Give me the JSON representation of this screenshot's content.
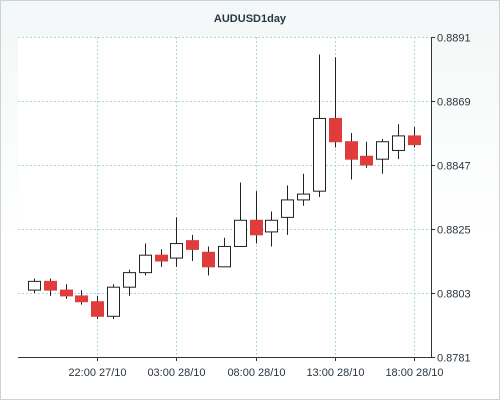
{
  "chart_data": {
    "type": "candlestick",
    "title": "AUDUSD1day",
    "xlabel": "",
    "ylabel": "",
    "ylim": [
      0.8781,
      0.8891
    ],
    "y_ticks": [
      "0.8891",
      "0.8869",
      "0.8847",
      "0.8825",
      "0.8803",
      "0.8781"
    ],
    "x_ticks": [
      {
        "label": "22:00 27/10",
        "index": 4
      },
      {
        "label": "03:00 28/10",
        "index": 9
      },
      {
        "label": "08:00 28/10",
        "index": 14
      },
      {
        "label": "13:00 28/10",
        "index": 19
      },
      {
        "label": "18:00 28/10",
        "index": 24
      }
    ],
    "grid": true,
    "colors": {
      "bull": "#ffffff",
      "bear": "#e03c3c",
      "wick": "#222222",
      "grid": "#a8d8dc",
      "axis": "#2a3640"
    },
    "candles": [
      {
        "open": 0.8804,
        "high": 0.8808,
        "low": 0.8803,
        "close": 0.8807
      },
      {
        "open": 0.8807,
        "high": 0.8808,
        "low": 0.8802,
        "close": 0.8804
      },
      {
        "open": 0.8804,
        "high": 0.8806,
        "low": 0.8801,
        "close": 0.8802
      },
      {
        "open": 0.8802,
        "high": 0.8804,
        "low": 0.8799,
        "close": 0.88
      },
      {
        "open": 0.88,
        "high": 0.8802,
        "low": 0.8794,
        "close": 0.8795
      },
      {
        "open": 0.8795,
        "high": 0.8806,
        "low": 0.8794,
        "close": 0.8805
      },
      {
        "open": 0.8805,
        "high": 0.8811,
        "low": 0.8802,
        "close": 0.881
      },
      {
        "open": 0.881,
        "high": 0.882,
        "low": 0.8809,
        "close": 0.8816
      },
      {
        "open": 0.8816,
        "high": 0.8818,
        "low": 0.8812,
        "close": 0.8814
      },
      {
        "open": 0.8815,
        "high": 0.8829,
        "low": 0.8812,
        "close": 0.882
      },
      {
        "open": 0.8821,
        "high": 0.8823,
        "low": 0.8814,
        "close": 0.8818
      },
      {
        "open": 0.8817,
        "high": 0.8819,
        "low": 0.8809,
        "close": 0.8812
      },
      {
        "open": 0.8812,
        "high": 0.8822,
        "low": 0.8812,
        "close": 0.8819
      },
      {
        "open": 0.8819,
        "high": 0.8841,
        "low": 0.8819,
        "close": 0.8828
      },
      {
        "open": 0.8828,
        "high": 0.8838,
        "low": 0.882,
        "close": 0.8823
      },
      {
        "open": 0.8824,
        "high": 0.8831,
        "low": 0.8819,
        "close": 0.8828
      },
      {
        "open": 0.8829,
        "high": 0.884,
        "low": 0.8823,
        "close": 0.8835
      },
      {
        "open": 0.8835,
        "high": 0.8844,
        "low": 0.8833,
        "close": 0.8837
      },
      {
        "open": 0.8838,
        "high": 0.8885,
        "low": 0.8836,
        "close": 0.8863
      },
      {
        "open": 0.8863,
        "high": 0.8884,
        "low": 0.8853,
        "close": 0.8855
      },
      {
        "open": 0.8855,
        "high": 0.8858,
        "low": 0.8842,
        "close": 0.8849
      },
      {
        "open": 0.885,
        "high": 0.8855,
        "low": 0.8846,
        "close": 0.8847
      },
      {
        "open": 0.8849,
        "high": 0.8856,
        "low": 0.8844,
        "close": 0.8855
      },
      {
        "open": 0.8852,
        "high": 0.8861,
        "low": 0.8849,
        "close": 0.8857
      },
      {
        "open": 0.8857,
        "high": 0.886,
        "low": 0.8853,
        "close": 0.8854
      }
    ]
  }
}
